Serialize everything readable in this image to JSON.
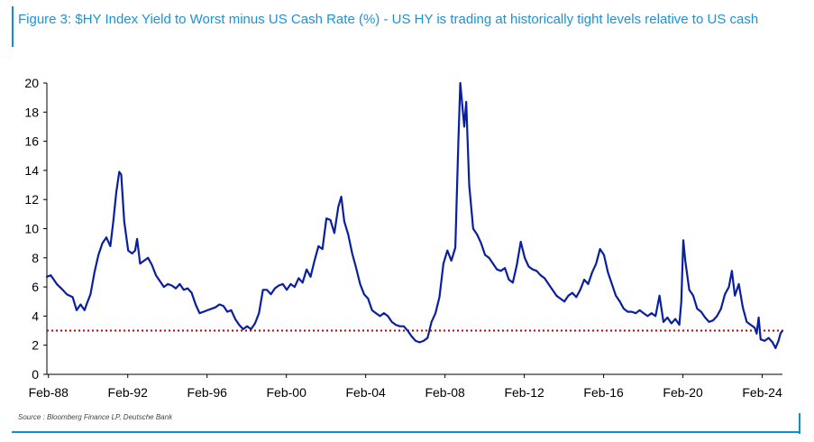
{
  "figure": {
    "title": "Figure 3: $HY Index Yield to Worst minus US Cash Rate (%) - US HY is trading at historically tight levels relative to US cash",
    "source": "Source : Bloomberg Finance LP, Deutsche Bank"
  },
  "colors": {
    "line": "#0a1fa0",
    "reference": "#c00000",
    "accent": "#0b8fd6"
  },
  "chart_data": {
    "type": "line",
    "title": "$HY Index Yield to Worst minus US Cash Rate (%)",
    "xlabel": "",
    "ylabel": "",
    "ylim": [
      0,
      20
    ],
    "xlim": [
      1988.0,
      2025.1
    ],
    "yticks": [
      0,
      2,
      4,
      6,
      8,
      10,
      12,
      14,
      16,
      18,
      20
    ],
    "xtick_values": [
      1988.08,
      1992.08,
      1996.08,
      2000.08,
      2004.08,
      2008.08,
      2012.08,
      2016.08,
      2020.08,
      2024.08
    ],
    "xtick_labels": [
      "Feb-88",
      "Feb-92",
      "Feb-96",
      "Feb-00",
      "Feb-04",
      "Feb-08",
      "Feb-12",
      "Feb-16",
      "Feb-20",
      "Feb-24"
    ],
    "reference_line": {
      "y": 3.0,
      "style": "dotted"
    },
    "series": [
      {
        "name": "$HY Index Yield to Worst minus US Cash Rate",
        "points": [
          [
            1988.0,
            6.7
          ],
          [
            1988.2,
            6.8
          ],
          [
            1988.5,
            6.2
          ],
          [
            1988.8,
            5.8
          ],
          [
            1989.0,
            5.5
          ],
          [
            1989.3,
            5.3
          ],
          [
            1989.5,
            4.4
          ],
          [
            1989.7,
            4.8
          ],
          [
            1989.9,
            4.4
          ],
          [
            1990.0,
            4.8
          ],
          [
            1990.2,
            5.5
          ],
          [
            1990.4,
            7.0
          ],
          [
            1990.6,
            8.2
          ],
          [
            1990.8,
            9.0
          ],
          [
            1991.0,
            9.4
          ],
          [
            1991.2,
            8.8
          ],
          [
            1991.35,
            10.5
          ],
          [
            1991.5,
            12.5
          ],
          [
            1991.65,
            13.9
          ],
          [
            1991.75,
            13.7
          ],
          [
            1991.9,
            10.5
          ],
          [
            1992.1,
            8.5
          ],
          [
            1992.3,
            8.3
          ],
          [
            1992.45,
            8.5
          ],
          [
            1992.55,
            9.3
          ],
          [
            1992.7,
            7.6
          ],
          [
            1992.9,
            7.8
          ],
          [
            1993.1,
            8.0
          ],
          [
            1993.3,
            7.5
          ],
          [
            1993.5,
            6.8
          ],
          [
            1993.7,
            6.4
          ],
          [
            1993.9,
            6.0
          ],
          [
            1994.1,
            6.2
          ],
          [
            1994.3,
            6.1
          ],
          [
            1994.5,
            5.9
          ],
          [
            1994.7,
            6.2
          ],
          [
            1994.9,
            5.8
          ],
          [
            1995.1,
            5.9
          ],
          [
            1995.3,
            5.6
          ],
          [
            1995.5,
            4.8
          ],
          [
            1995.7,
            4.2
          ],
          [
            1995.9,
            4.3
          ],
          [
            1996.1,
            4.4
          ],
          [
            1996.3,
            4.5
          ],
          [
            1996.5,
            4.6
          ],
          [
            1996.7,
            4.8
          ],
          [
            1996.9,
            4.7
          ],
          [
            1997.1,
            4.3
          ],
          [
            1997.3,
            4.4
          ],
          [
            1997.5,
            3.8
          ],
          [
            1997.7,
            3.4
          ],
          [
            1997.9,
            3.1
          ],
          [
            1998.1,
            3.3
          ],
          [
            1998.3,
            3.1
          ],
          [
            1998.5,
            3.5
          ],
          [
            1998.7,
            4.2
          ],
          [
            1998.9,
            5.8
          ],
          [
            1999.1,
            5.8
          ],
          [
            1999.3,
            5.5
          ],
          [
            1999.5,
            5.9
          ],
          [
            1999.7,
            6.1
          ],
          [
            1999.9,
            6.2
          ],
          [
            2000.1,
            5.8
          ],
          [
            2000.3,
            6.2
          ],
          [
            2000.5,
            6.0
          ],
          [
            2000.7,
            6.6
          ],
          [
            2000.9,
            6.3
          ],
          [
            2001.1,
            7.2
          ],
          [
            2001.3,
            6.7
          ],
          [
            2001.5,
            7.8
          ],
          [
            2001.7,
            8.8
          ],
          [
            2001.9,
            8.6
          ],
          [
            2002.1,
            10.7
          ],
          [
            2002.3,
            10.6
          ],
          [
            2002.5,
            9.7
          ],
          [
            2002.7,
            11.5
          ],
          [
            2002.85,
            12.2
          ],
          [
            2003.0,
            10.5
          ],
          [
            2003.2,
            9.6
          ],
          [
            2003.4,
            8.3
          ],
          [
            2003.6,
            7.3
          ],
          [
            2003.8,
            6.2
          ],
          [
            2004.0,
            5.5
          ],
          [
            2004.2,
            5.2
          ],
          [
            2004.4,
            4.4
          ],
          [
            2004.6,
            4.2
          ],
          [
            2004.8,
            4.0
          ],
          [
            2005.0,
            4.2
          ],
          [
            2005.2,
            4.0
          ],
          [
            2005.4,
            3.6
          ],
          [
            2005.6,
            3.4
          ],
          [
            2005.8,
            3.3
          ],
          [
            2006.0,
            3.3
          ],
          [
            2006.2,
            3.0
          ],
          [
            2006.4,
            2.6
          ],
          [
            2006.6,
            2.3
          ],
          [
            2006.8,
            2.2
          ],
          [
            2007.0,
            2.3
          ],
          [
            2007.2,
            2.5
          ],
          [
            2007.4,
            3.6
          ],
          [
            2007.6,
            4.2
          ],
          [
            2007.8,
            5.3
          ],
          [
            2008.0,
            7.6
          ],
          [
            2008.2,
            8.5
          ],
          [
            2008.4,
            7.8
          ],
          [
            2008.6,
            8.7
          ],
          [
            2008.75,
            15.8
          ],
          [
            2008.85,
            20.0
          ],
          [
            2008.95,
            18.5
          ],
          [
            2009.05,
            17.0
          ],
          [
            2009.15,
            18.7
          ],
          [
            2009.3,
            13.0
          ],
          [
            2009.5,
            10.0
          ],
          [
            2009.7,
            9.6
          ],
          [
            2009.9,
            9.0
          ],
          [
            2010.1,
            8.2
          ],
          [
            2010.3,
            8.0
          ],
          [
            2010.5,
            7.6
          ],
          [
            2010.7,
            7.2
          ],
          [
            2010.9,
            7.1
          ],
          [
            2011.1,
            7.3
          ],
          [
            2011.3,
            6.5
          ],
          [
            2011.5,
            6.3
          ],
          [
            2011.7,
            7.5
          ],
          [
            2011.9,
            9.1
          ],
          [
            2012.1,
            8.0
          ],
          [
            2012.3,
            7.4
          ],
          [
            2012.5,
            7.2
          ],
          [
            2012.7,
            7.1
          ],
          [
            2012.9,
            6.8
          ],
          [
            2013.1,
            6.6
          ],
          [
            2013.3,
            6.2
          ],
          [
            2013.5,
            5.8
          ],
          [
            2013.7,
            5.4
          ],
          [
            2013.9,
            5.2
          ],
          [
            2014.1,
            5.0
          ],
          [
            2014.3,
            5.4
          ],
          [
            2014.5,
            5.6
          ],
          [
            2014.7,
            5.3
          ],
          [
            2014.9,
            5.8
          ],
          [
            2015.1,
            6.5
          ],
          [
            2015.3,
            6.2
          ],
          [
            2015.5,
            7.0
          ],
          [
            2015.7,
            7.6
          ],
          [
            2015.9,
            8.6
          ],
          [
            2016.1,
            8.2
          ],
          [
            2016.3,
            7.0
          ],
          [
            2016.5,
            6.2
          ],
          [
            2016.7,
            5.4
          ],
          [
            2016.9,
            5.0
          ],
          [
            2017.1,
            4.5
          ],
          [
            2017.3,
            4.3
          ],
          [
            2017.5,
            4.3
          ],
          [
            2017.7,
            4.2
          ],
          [
            2017.9,
            4.4
          ],
          [
            2018.1,
            4.2
          ],
          [
            2018.3,
            4.0
          ],
          [
            2018.5,
            4.2
          ],
          [
            2018.7,
            4.0
          ],
          [
            2018.9,
            5.4
          ],
          [
            2019.1,
            3.6
          ],
          [
            2019.3,
            3.9
          ],
          [
            2019.5,
            3.5
          ],
          [
            2019.7,
            3.8
          ],
          [
            2019.9,
            3.4
          ],
          [
            2020.0,
            5.0
          ],
          [
            2020.1,
            9.2
          ],
          [
            2020.2,
            7.8
          ],
          [
            2020.4,
            5.8
          ],
          [
            2020.6,
            5.4
          ],
          [
            2020.8,
            4.5
          ],
          [
            2021.0,
            4.3
          ],
          [
            2021.2,
            3.9
          ],
          [
            2021.4,
            3.6
          ],
          [
            2021.6,
            3.7
          ],
          [
            2021.8,
            4.0
          ],
          [
            2022.0,
            4.5
          ],
          [
            2022.2,
            5.5
          ],
          [
            2022.4,
            6.0
          ],
          [
            2022.55,
            7.1
          ],
          [
            2022.7,
            5.4
          ],
          [
            2022.9,
            6.2
          ],
          [
            2023.1,
            4.6
          ],
          [
            2023.3,
            3.6
          ],
          [
            2023.5,
            3.4
          ],
          [
            2023.7,
            3.2
          ],
          [
            2023.8,
            2.8
          ],
          [
            2023.9,
            3.9
          ],
          [
            2024.0,
            2.4
          ],
          [
            2024.2,
            2.3
          ],
          [
            2024.4,
            2.5
          ],
          [
            2024.6,
            2.2
          ],
          [
            2024.75,
            1.8
          ],
          [
            2024.9,
            2.3
          ],
          [
            2025.0,
            2.8
          ],
          [
            2025.1,
            3.0
          ]
        ]
      }
    ]
  }
}
